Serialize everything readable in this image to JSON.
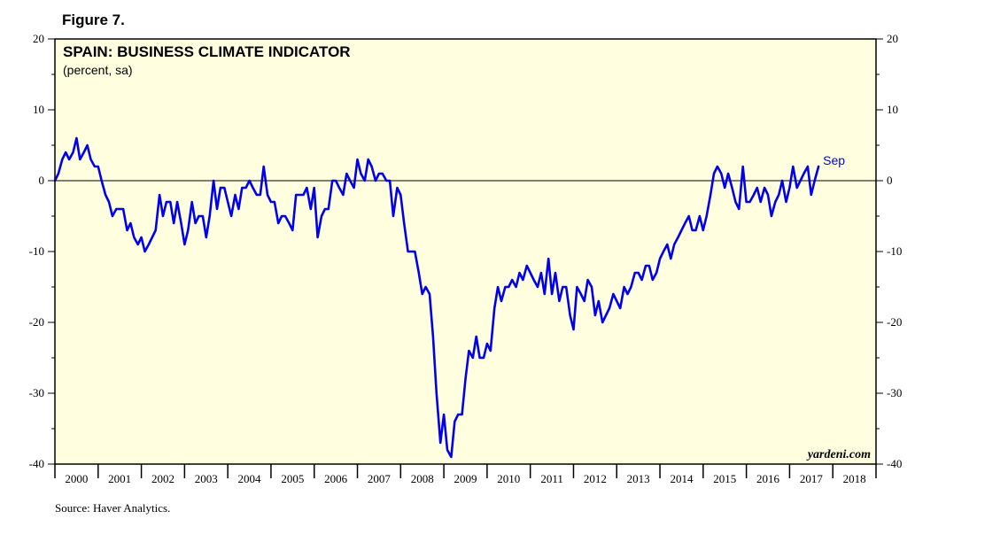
{
  "figure_label": "Figure 7.",
  "source": "Source: Haver Analytics.",
  "watermark": "yardeni.com",
  "colors": {
    "plot_bg": "#ffffe0",
    "line": "#0000ee"
  },
  "chart_data": {
    "type": "line",
    "title": "SPAIN: BUSINESS CLIMATE INDICATOR",
    "subtitle": "(percent, sa)",
    "xlabel": "",
    "ylabel": "",
    "ylim": [
      -40,
      20
    ],
    "yticks": [
      -40,
      -30,
      -20,
      -10,
      0,
      10,
      20
    ],
    "ytick_labels": [
      "-40",
      "-30",
      "-20",
      "-10",
      "0",
      "10",
      "20"
    ],
    "xlim": [
      2000,
      2019
    ],
    "xtick_labels": [
      "2000",
      "2001",
      "2002",
      "2003",
      "2004",
      "2005",
      "2006",
      "2007",
      "2008",
      "2009",
      "2010",
      "2011",
      "2012",
      "2013",
      "2014",
      "2015",
      "2016",
      "2017",
      "2018"
    ],
    "zero_line": true,
    "grid": false,
    "end_label": "Sep",
    "series": [
      {
        "name": "",
        "x": [
          2000.0,
          2000.08,
          2000.17,
          2000.25,
          2000.33,
          2000.42,
          2000.5,
          2000.58,
          2000.67,
          2000.75,
          2000.83,
          2000.92,
          2001.0,
          2001.08,
          2001.17,
          2001.25,
          2001.33,
          2001.42,
          2001.5,
          2001.58,
          2001.67,
          2001.75,
          2001.83,
          2001.92,
          2002.0,
          2002.08,
          2002.17,
          2002.25,
          2002.33,
          2002.42,
          2002.5,
          2002.58,
          2002.67,
          2002.75,
          2002.83,
          2002.92,
          2003.0,
          2003.08,
          2003.17,
          2003.25,
          2003.33,
          2003.42,
          2003.5,
          2003.58,
          2003.67,
          2003.75,
          2003.83,
          2003.92,
          2004.0,
          2004.08,
          2004.17,
          2004.25,
          2004.33,
          2004.42,
          2004.5,
          2004.58,
          2004.67,
          2004.75,
          2004.83,
          2004.92,
          2005.0,
          2005.08,
          2005.17,
          2005.25,
          2005.33,
          2005.42,
          2005.5,
          2005.58,
          2005.67,
          2005.75,
          2005.83,
          2005.92,
          2006.0,
          2006.08,
          2006.17,
          2006.25,
          2006.33,
          2006.42,
          2006.5,
          2006.58,
          2006.67,
          2006.75,
          2006.83,
          2006.92,
          2007.0,
          2007.08,
          2007.17,
          2007.25,
          2007.33,
          2007.42,
          2007.5,
          2007.58,
          2007.67,
          2007.75,
          2007.83,
          2007.92,
          2008.0,
          2008.08,
          2008.17,
          2008.25,
          2008.33,
          2008.42,
          2008.5,
          2008.58,
          2008.67,
          2008.75,
          2008.83,
          2008.92,
          2009.0,
          2009.08,
          2009.17,
          2009.25,
          2009.33,
          2009.42,
          2009.5,
          2009.58,
          2009.67,
          2009.75,
          2009.83,
          2009.92,
          2010.0,
          2010.08,
          2010.17,
          2010.25,
          2010.33,
          2010.42,
          2010.5,
          2010.58,
          2010.67,
          2010.75,
          2010.83,
          2010.92,
          2011.0,
          2011.08,
          2011.17,
          2011.25,
          2011.33,
          2011.42,
          2011.5,
          2011.58,
          2011.67,
          2011.75,
          2011.83,
          2011.92,
          2012.0,
          2012.08,
          2012.17,
          2012.25,
          2012.33,
          2012.42,
          2012.5,
          2012.58,
          2012.67,
          2012.75,
          2012.83,
          2012.92,
          2013.0,
          2013.08,
          2013.17,
          2013.25,
          2013.33,
          2013.42,
          2013.5,
          2013.58,
          2013.67,
          2013.75,
          2013.83,
          2013.92,
          2014.0,
          2014.08,
          2014.17,
          2014.25,
          2014.33,
          2014.42,
          2014.5,
          2014.58,
          2014.67,
          2014.75,
          2014.83,
          2014.92,
          2015.0,
          2015.08,
          2015.17,
          2015.25,
          2015.33,
          2015.42,
          2015.5,
          2015.58,
          2015.67,
          2015.75,
          2015.83,
          2015.92,
          2016.0,
          2016.08,
          2016.17,
          2016.25,
          2016.33,
          2016.42,
          2016.5,
          2016.58,
          2016.67,
          2016.75,
          2016.83,
          2016.92,
          2017.0,
          2017.08,
          2017.17,
          2017.25,
          2017.33,
          2017.42,
          2017.5,
          2017.58,
          2017.67
        ],
        "y": [
          0,
          1,
          3,
          4,
          3,
          4,
          6,
          3,
          4,
          5,
          3,
          2,
          2,
          0,
          -2,
          -3,
          -5,
          -4,
          -4,
          -4,
          -7,
          -6,
          -8,
          -9,
          -8,
          -10,
          -9,
          -8,
          -7,
          -2,
          -5,
          -3,
          -3,
          -6,
          -3,
          -6,
          -9,
          -7,
          -3,
          -6,
          -5,
          -5,
          -8,
          -5,
          0,
          -4,
          -1,
          -1,
          -3,
          -5,
          -2,
          -4,
          -1,
          -1,
          0,
          -1,
          -2,
          -2,
          2,
          -2,
          -3,
          -3,
          -6,
          -5,
          -5,
          -6,
          -7,
          -2,
          -2,
          -2,
          -1,
          -4,
          -1,
          -8,
          -5,
          -4,
          -4,
          0,
          0,
          -1,
          -2,
          1,
          0,
          -1,
          3,
          1,
          0,
          3,
          2,
          0,
          1,
          1,
          0,
          0,
          -5,
          -1,
          -2,
          -6,
          -10,
          -10,
          -10,
          -13,
          -16,
          -15,
          -16,
          -22,
          -30,
          -37,
          -33,
          -38,
          -39,
          -34,
          -33,
          -33,
          -28,
          -24,
          -25,
          -22,
          -25,
          -25,
          -23,
          -24,
          -18,
          -15,
          -17,
          -15,
          -15,
          -14,
          -15,
          -13,
          -14,
          -12,
          -13,
          -14,
          -15,
          -13,
          -16,
          -11,
          -16,
          -13,
          -17,
          -15,
          -15,
          -19,
          -21,
          -15,
          -16,
          -17,
          -14,
          -15,
          -19,
          -17,
          -20,
          -19,
          -18,
          -16,
          -17,
          -18,
          -15,
          -16,
          -15,
          -13,
          -13,
          -14,
          -12,
          -12,
          -14,
          -13,
          -11,
          -10,
          -9,
          -11,
          -9,
          -8,
          -7,
          -6,
          -5,
          -7,
          -7,
          -5,
          -7,
          -5,
          -2,
          1,
          2,
          1,
          -1,
          1,
          -1,
          -3,
          -4,
          2,
          -3,
          -3,
          -2,
          -1,
          -3,
          -1,
          -2,
          -5,
          -3,
          -2,
          0,
          -3,
          -1,
          2,
          -1,
          0,
          1,
          2,
          -2,
          0,
          2
        ]
      }
    ]
  }
}
